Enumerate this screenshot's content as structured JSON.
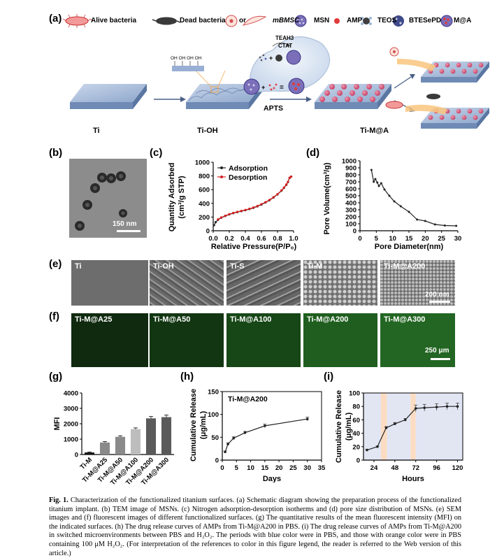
{
  "panel_a": {
    "label": "(a)",
    "legend": [
      {
        "id": "alive",
        "text": "Alive bacteria"
      },
      {
        "id": "dead",
        "text": "Dead bacteria"
      },
      {
        "id": "or",
        "text": "or"
      },
      {
        "id": "mbmsc",
        "text": "mBMSC"
      },
      {
        "id": "msn",
        "text": "MSN"
      },
      {
        "id": "amp",
        "text": "AMP"
      },
      {
        "id": "teos",
        "text": "TEOS"
      },
      {
        "id": "btes",
        "text": "BTESePD"
      },
      {
        "id": "ma",
        "text": "M@A"
      }
    ],
    "stages": {
      "ti": "Ti",
      "tioh": "Ti-OH",
      "tima": "Ti-M@A"
    },
    "oh_label": "OH OH OH OH",
    "bubble": {
      "teah3": "TEAH3",
      "ctat": "CTAT"
    },
    "apts": "APTS",
    "colors": {
      "substrate": "#a9bddc",
      "bead": "#d9587a",
      "msn": "#7a6fb8",
      "bubble": "#d8e4f3"
    }
  },
  "panel_b": {
    "label": "(b)",
    "scale": "150 nm"
  },
  "panel_c": {
    "label": "(c)"
  },
  "panel_d": {
    "label": "(d)"
  },
  "panel_e": {
    "label": "(e)",
    "images": [
      "Ti",
      "Ti-OH",
      "Ti-S",
      "Ti-M",
      "Ti-M@A200"
    ],
    "scale": "200 nm"
  },
  "panel_f": {
    "label": "(f)",
    "images": [
      "Ti-M@A25",
      "Ti-M@A50",
      "Ti-M@A100",
      "Ti-M@A200",
      "Ti-M@A300"
    ],
    "scale": "250 μm"
  },
  "panel_g": {
    "label": "(g)"
  },
  "panel_h": {
    "label": "(h)"
  },
  "panel_i": {
    "label": "(i)"
  },
  "chart_data": [
    {
      "id": "c",
      "type": "line",
      "xlabel": "Relative Pressure(P/P0)",
      "ylabel": "Quantity Adsorbed (cm3/g STP)",
      "xlim": [
        0,
        1.0
      ],
      "ylim": [
        0,
        1000
      ],
      "xticks": [
        "0.0",
        "0.2",
        "0.4",
        "0.6",
        "0.8",
        "1.0"
      ],
      "yticks": [
        "0",
        "200",
        "400",
        "600",
        "800",
        "1000"
      ],
      "legend_position": "top-left",
      "series": [
        {
          "name": "Adsorption",
          "color": "#222222",
          "x": [
            0.01,
            0.03,
            0.06,
            0.1,
            0.15,
            0.2,
            0.25,
            0.3,
            0.35,
            0.4,
            0.45,
            0.5,
            0.55,
            0.6,
            0.65,
            0.7,
            0.75,
            0.8,
            0.85,
            0.88,
            0.91,
            0.93,
            0.95,
            0.97
          ],
          "y": [
            80,
            125,
            160,
            190,
            215,
            238,
            256,
            272,
            286,
            300,
            316,
            334,
            356,
            382,
            412,
            445,
            485,
            530,
            585,
            625,
            670,
            710,
            770,
            790
          ]
        },
        {
          "name": "Desorption",
          "color": "#d42020",
          "x": [
            0.97,
            0.95,
            0.93,
            0.91,
            0.88,
            0.85,
            0.8,
            0.75,
            0.7,
            0.65,
            0.6,
            0.55,
            0.5,
            0.45,
            0.4,
            0.35,
            0.3,
            0.25,
            0.2,
            0.15,
            0.1,
            0.06
          ],
          "y": [
            790,
            775,
            715,
            675,
            630,
            590,
            535,
            490,
            450,
            417,
            388,
            361,
            339,
            320,
            304,
            290,
            276,
            260,
            242,
            220,
            194,
            166
          ]
        }
      ]
    },
    {
      "id": "d",
      "type": "line",
      "xlabel": "Pore Diameter(nm)",
      "ylabel": "Pore Volume(cm3/g)",
      "xlim": [
        0,
        30
      ],
      "ylim": [
        0,
        1000
      ],
      "xticks": [
        "0",
        "5",
        "10",
        "15",
        "20",
        "25",
        "30"
      ],
      "yticks": [
        "0",
        "100",
        "200",
        "300",
        "400",
        "500",
        "600",
        "700",
        "800",
        "900",
        "1000"
      ],
      "series": [
        {
          "name": "",
          "color": "#222222",
          "x": [
            3.5,
            4.2,
            4.7,
            5.3,
            5.8,
            6.5,
            7.5,
            9,
            10.5,
            12.5,
            15,
            17.5,
            20,
            23,
            26,
            29.5
          ],
          "y": [
            870,
            700,
            740,
            690,
            640,
            680,
            590,
            500,
            420,
            350,
            270,
            160,
            140,
            90,
            75,
            70
          ]
        }
      ]
    },
    {
      "id": "g",
      "type": "bar",
      "ylabel": "MFI",
      "categories": [
        "Ti-M",
        "Ti-M@A25",
        "Ti-M@A50",
        "Ti-M@A100",
        "Ti-M@A200",
        "Ti-M@A300"
      ],
      "values": [
        130,
        780,
        1150,
        1650,
        2350,
        2430
      ],
      "errors": [
        30,
        60,
        70,
        80,
        120,
        130
      ],
      "ylim": [
        0,
        4000
      ],
      "yticks": [
        "0",
        "1000",
        "2000",
        "3000",
        "4000"
      ],
      "colors": [
        "#111111",
        "#8a8a8a",
        "#8a8a8a",
        "#bdbdbd",
        "#5a5a5a",
        "#5a5a5a"
      ]
    },
    {
      "id": "h",
      "type": "line",
      "title": "Ti-M@A200",
      "xlabel": "Days",
      "ylabel": "Cumulative Release (μg/mL)",
      "xlim": [
        0,
        35
      ],
      "ylim": [
        0,
        150
      ],
      "xticks": [
        "0",
        "5",
        "10",
        "15",
        "20",
        "25",
        "30",
        "35"
      ],
      "yticks": [
        "0",
        "50",
        "100",
        "150"
      ],
      "series": [
        {
          "name": "",
          "color": "#222222",
          "x": [
            1,
            2,
            4,
            8,
            15,
            30
          ],
          "y": [
            18,
            35,
            48,
            60,
            75,
            90
          ],
          "errors": [
            2,
            3,
            3,
            3,
            4,
            4
          ]
        }
      ]
    },
    {
      "id": "i",
      "type": "line",
      "xlabel": "Hours",
      "ylabel": "Cumulative Release (μg/mL)",
      "xlim": [
        12,
        126
      ],
      "ylim": [
        0,
        100
      ],
      "xticks": [
        "24",
        "48",
        "72",
        "96",
        "120"
      ],
      "yticks": [
        "0",
        "20",
        "40",
        "60",
        "80",
        "100"
      ],
      "shading": [
        {
          "from": 12,
          "to": 32,
          "color": "#e2e6f3"
        },
        {
          "from": 32,
          "to": 39,
          "color": "#fbdcc3"
        },
        {
          "from": 39,
          "to": 66,
          "color": "#e2e6f3"
        },
        {
          "from": 66,
          "to": 72,
          "color": "#fbdcc3"
        },
        {
          "from": 72,
          "to": 126,
          "color": "#e2e6f3"
        }
      ],
      "series": [
        {
          "name": "",
          "color": "#222222",
          "x": [
            16,
            28,
            38,
            48,
            60,
            72,
            82,
            96,
            108,
            120
          ],
          "y": [
            15,
            20,
            48,
            54,
            60,
            77,
            78,
            79,
            80,
            80
          ],
          "errors": [
            1,
            1,
            2,
            2,
            2,
            5,
            5,
            5,
            5,
            5
          ]
        }
      ]
    }
  ],
  "caption": {
    "title": "Fig. 1.",
    "text": "Characterization of the functionalized titanium surfaces. (a) Schematic diagram showing the preparation process of the functionalized titanium implant. (b) TEM image of MSNs. (c) Nitrogen adsorption-desorption isotherms and (d) pore size distribution of MSNs. (e) SEM images and (f) fluorescent images of different functionalized surfaces. (g) The quantitative results of the mean fluorescent intensity (MFI) on the indicated surfaces. (h) The drug release curves of AMPs from Ti-M@A200 in PBS. (i) The drug release curves of AMPs from Ti-M@A200 in switched microenvironments between PBS and H₂O₂. The periods with blue color were in PBS, and those with orange color were in PBS containing 100 μM H₂O₂. (For interpretation of the references to color in this figure legend, the reader is referred to the Web version of this article.)"
  }
}
